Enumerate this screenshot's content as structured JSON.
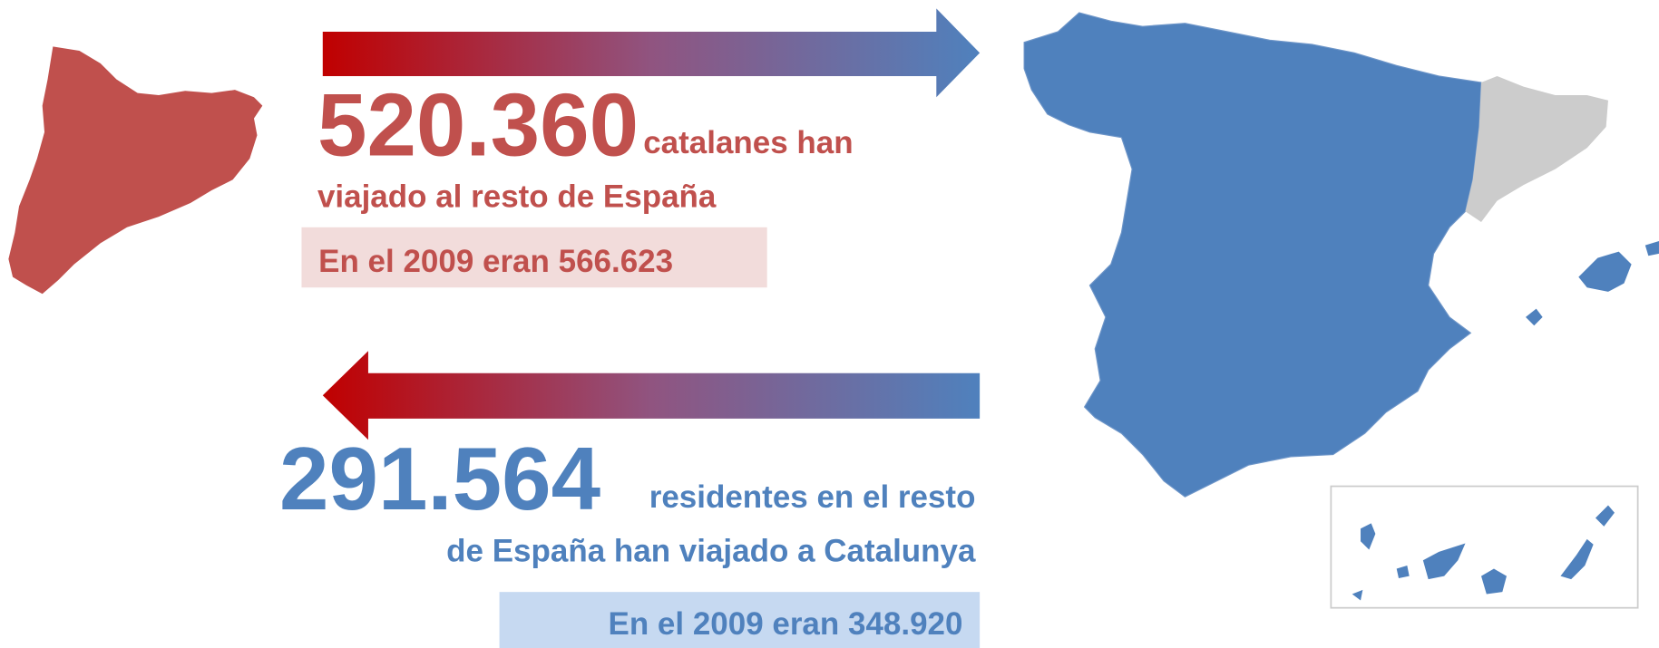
{
  "outbound": {
    "number": "520.360",
    "line1": "catalanes han",
    "line2": "viajado al resto de España",
    "previous": "En el 2009 eran 566.623"
  },
  "inbound": {
    "number": "291.564",
    "line1": "residentes en el resto",
    "line2": "de España han viajado a Catalunya",
    "previous": "En el 2009 eran 348.920"
  }
}
